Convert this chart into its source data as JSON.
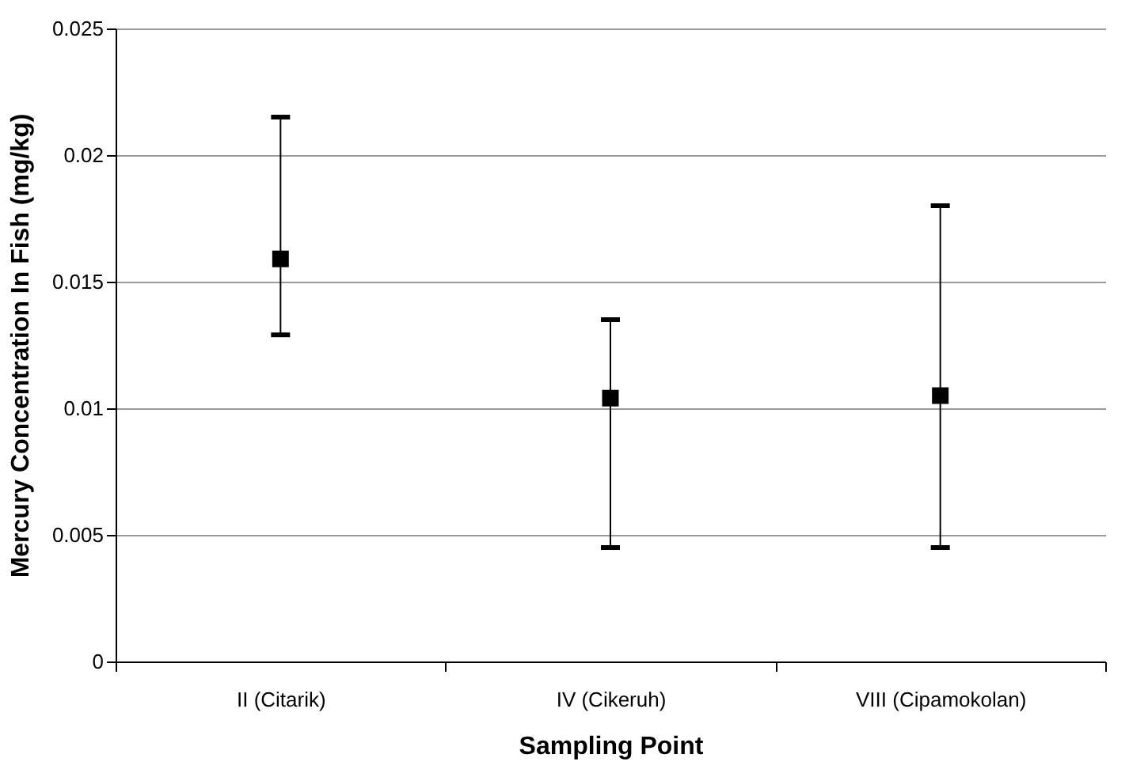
{
  "chart_data": {
    "type": "scatter",
    "xlabel": "Sampling Point",
    "ylabel": "Mercury Concentration In Fish (mg/kg)",
    "categories": [
      "II (Citarik)",
      "IV (Cikeruh)",
      "VIII (Cipamokolan)"
    ],
    "series": [
      {
        "color": "#000000",
        "values": [
          0.0159,
          0.0104,
          0.0105
        ],
        "errors": [
          [
            0.0129,
            0.0215
          ],
          [
            0.0045,
            0.0135
          ],
          [
            0.0045,
            0.018
          ]
        ]
      }
    ],
    "ylim": [
      0,
      0.025
    ],
    "yticks": [
      0,
      0.005,
      0.01,
      0.015,
      0.02,
      0.025
    ],
    "grid": "y",
    "marker": "square"
  }
}
